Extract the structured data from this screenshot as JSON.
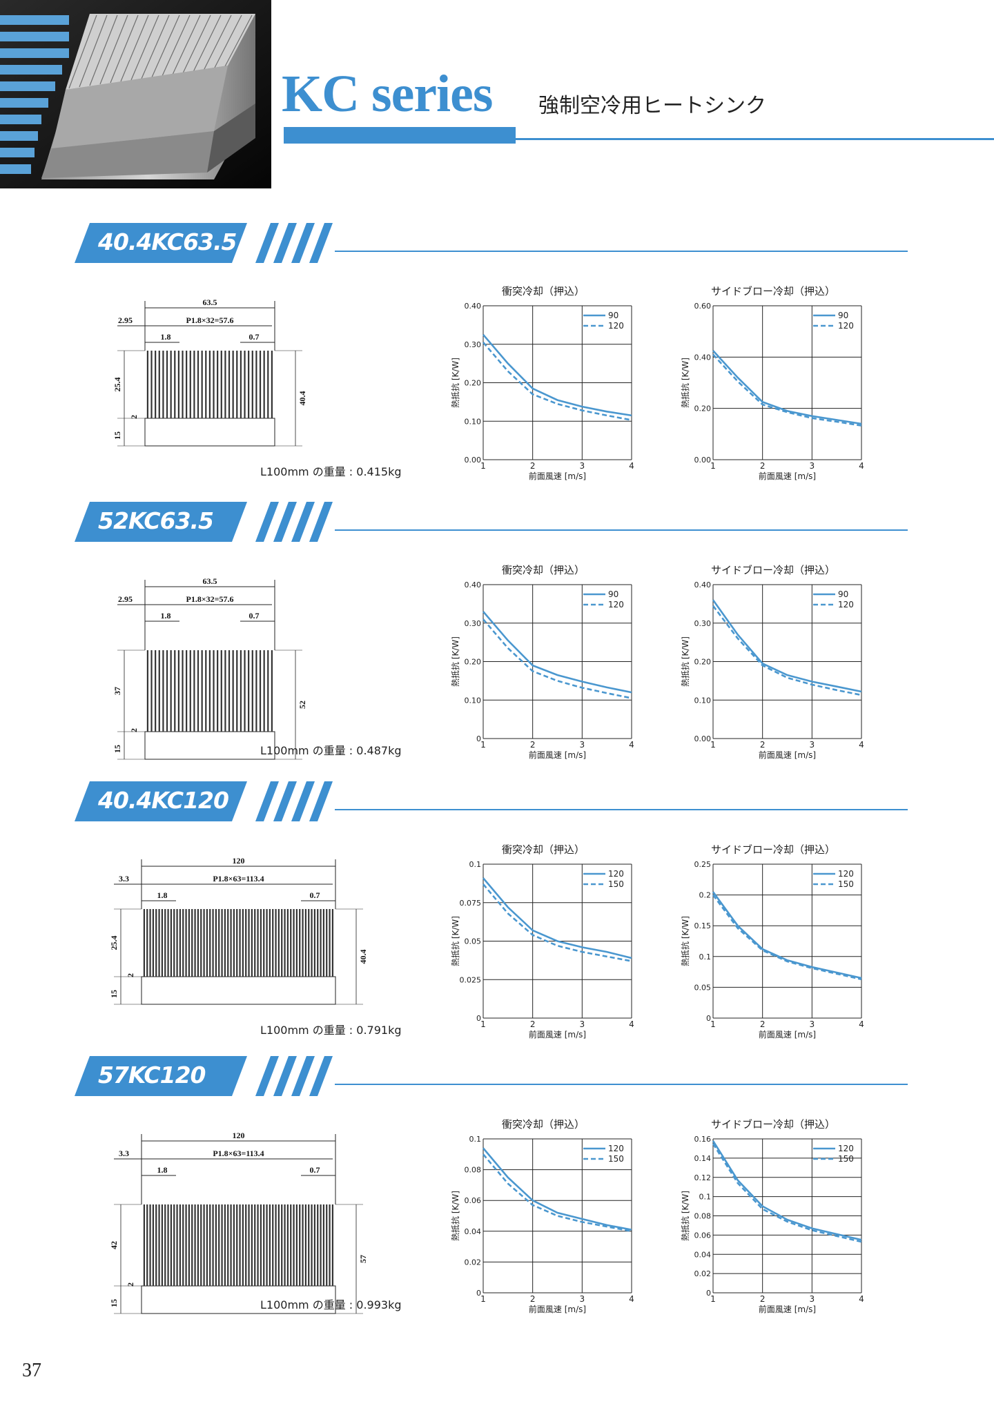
{
  "header": {
    "title": "KC series",
    "subtitle": "強制空冷用ヒートシンク",
    "accent_color": "#3d8fd0"
  },
  "page_number": "37",
  "products": [
    {
      "name": "40.4KC63.5",
      "weight_label": "L100mm の重量 : 0.415kg",
      "drawing": {
        "width": "63.5",
        "pitch": "P1.8×32=57.6",
        "edge": "2.95",
        "fin_base": "1.8",
        "fin_tip": "0.7",
        "fin_height": "25.4",
        "base": "15",
        "base_thk": "2",
        "total_height": "40.4"
      },
      "charts": [
        {
          "title": "衝突冷却（押込）",
          "ylabel": "熱抵抗 [K/W]",
          "xlabel": "前面風速 [m/s]",
          "x_ticks": [
            "1",
            "2",
            "3",
            "4"
          ],
          "y_ticks": [
            "0.00",
            "0.10",
            "0.20",
            "0.30",
            "0.40"
          ],
          "ylim": [
            0,
            0.4
          ],
          "legend": [
            "90",
            "120"
          ]
        },
        {
          "title": "サイドブロー冷却（押込）",
          "ylabel": "熱抵抗 [K/W]",
          "xlabel": "前面風速 [m/s]",
          "x_ticks": [
            "1",
            "2",
            "3",
            "4"
          ],
          "y_ticks": [
            "0.00",
            "0.20",
            "0.40",
            "0.60"
          ],
          "ylim": [
            0,
            0.6
          ],
          "legend": [
            "90",
            "120"
          ]
        }
      ]
    },
    {
      "name": "52KC63.5",
      "weight_label": "L100mm の重量 : 0.487kg",
      "drawing": {
        "width": "63.5",
        "pitch": "P1.8×32=57.6",
        "edge": "2.95",
        "fin_base": "1.8",
        "fin_tip": "0.7",
        "fin_height": "37",
        "base": "15",
        "base_thk": "2",
        "total_height": "52"
      },
      "charts": [
        {
          "title": "衝突冷却（押込）",
          "ylabel": "熱抵抗 [K/W]",
          "xlabel": "前面風速 [m/s]",
          "x_ticks": [
            "1",
            "2",
            "3",
            "4"
          ],
          "y_ticks": [
            "0",
            "0.10",
            "0.20",
            "0.30",
            "0.40"
          ],
          "ylim": [
            0,
            0.4
          ],
          "legend": [
            "90",
            "120"
          ]
        },
        {
          "title": "サイドブロー冷却（押込）",
          "ylabel": "熱抵抗 [K/W]",
          "xlabel": "前面風速 [m/s]",
          "x_ticks": [
            "1",
            "2",
            "3",
            "4"
          ],
          "y_ticks": [
            "0.00",
            "0.10",
            "0.20",
            "0.30",
            "0.40"
          ],
          "ylim": [
            0,
            0.4
          ],
          "legend": [
            "90",
            "120"
          ]
        }
      ]
    },
    {
      "name": "40.4KC120",
      "weight_label": "L100mm の重量 : 0.791kg",
      "drawing": {
        "width": "120",
        "pitch": "P1.8×63=113.4",
        "edge": "3.3",
        "fin_base": "1.8",
        "fin_tip": "0.7",
        "fin_height": "25.4",
        "base": "15",
        "base_thk": "2",
        "total_height": "40.4"
      },
      "charts": [
        {
          "title": "衝突冷却（押込）",
          "ylabel": "熱抵抗 [K/W]",
          "xlabel": "前面風速 [m/s]",
          "x_ticks": [
            "1",
            "2",
            "3",
            "4"
          ],
          "y_ticks": [
            "0",
            "0.025",
            "0.05",
            "0.075",
            "0.1"
          ],
          "ylim": [
            0,
            0.1
          ],
          "legend": [
            "120",
            "150"
          ]
        },
        {
          "title": "サイドブロー冷却（押込）",
          "ylabel": "熱抵抗 [K/W]",
          "xlabel": "前面風速 [m/s]",
          "x_ticks": [
            "1",
            "2",
            "3",
            "4"
          ],
          "y_ticks": [
            "0",
            "0.05",
            "0.1",
            "0.15",
            "0.2",
            "0.25"
          ],
          "ylim": [
            0,
            0.25
          ],
          "legend": [
            "120",
            "150"
          ]
        }
      ]
    },
    {
      "name": "57KC120",
      "weight_label": "L100mm の重量 : 0.993kg",
      "drawing": {
        "width": "120",
        "pitch": "P1.8×63=113.4",
        "edge": "3.3",
        "fin_base": "1.8",
        "fin_tip": "0.7",
        "fin_height": "42",
        "base": "15",
        "base_thk": "2",
        "total_height": "57"
      },
      "charts": [
        {
          "title": "衝突冷却（押込）",
          "ylabel": "熱抵抗 [K/W]",
          "xlabel": "前面風速 [m/s]",
          "x_ticks": [
            "1",
            "2",
            "3",
            "4"
          ],
          "y_ticks": [
            "0",
            "0.02",
            "0.04",
            "0.06",
            "0.08",
            "0.1"
          ],
          "ylim": [
            0,
            0.1
          ],
          "legend": [
            "120",
            "150"
          ]
        },
        {
          "title": "サイドブロー冷却（押込）",
          "ylabel": "熱抵抗 [K/W]",
          "xlabel": "前面風速 [m/s]",
          "x_ticks": [
            "1",
            "2",
            "3",
            "4"
          ],
          "y_ticks": [
            "0",
            "0.02",
            "0.04",
            "0.06",
            "0.08",
            "0.1",
            "0.12",
            "0.14",
            "0.16"
          ],
          "ylim": [
            0,
            0.16
          ],
          "legend": [
            "120",
            "150"
          ]
        }
      ]
    }
  ],
  "chart_data": [
    {
      "type": "line",
      "product": "40.4KC63.5",
      "title": "衝突冷却（押込）",
      "xlabel": "前面風速 [m/s]",
      "ylabel": "熱抵抗 [K/W]",
      "xlim": [
        1,
        4
      ],
      "ylim": [
        0,
        0.4
      ],
      "grid": true,
      "legend_position": "top-right",
      "x": [
        1,
        1.5,
        2,
        2.5,
        3,
        3.5,
        4
      ],
      "series": [
        {
          "name": "90",
          "style": "solid",
          "values": [
            0.325,
            0.25,
            0.185,
            0.155,
            0.138,
            0.125,
            0.115
          ]
        },
        {
          "name": "120",
          "style": "dashed",
          "values": [
            0.305,
            0.23,
            0.17,
            0.145,
            0.128,
            0.115,
            0.103
          ]
        }
      ]
    },
    {
      "type": "line",
      "product": "40.4KC63.5",
      "title": "サイドブロー冷却（押込）",
      "xlabel": "前面風速 [m/s]",
      "ylabel": "熱抵抗 [K/W]",
      "xlim": [
        1,
        4
      ],
      "ylim": [
        0,
        0.6
      ],
      "grid": true,
      "legend_position": "top-right",
      "x": [
        1,
        1.5,
        2,
        2.5,
        3,
        3.5,
        4
      ],
      "series": [
        {
          "name": "90",
          "style": "solid",
          "values": [
            0.425,
            0.32,
            0.225,
            0.19,
            0.17,
            0.155,
            0.14
          ]
        },
        {
          "name": "120",
          "style": "dashed",
          "values": [
            0.41,
            0.305,
            0.215,
            0.185,
            0.162,
            0.148,
            0.133
          ]
        }
      ]
    },
    {
      "type": "line",
      "product": "52KC63.5",
      "title": "衝突冷却（押込）",
      "xlabel": "前面風速 [m/s]",
      "ylabel": "熱抵抗 [K/W]",
      "xlim": [
        1,
        4
      ],
      "ylim": [
        0,
        0.4
      ],
      "grid": true,
      "legend_position": "top-right",
      "x": [
        1,
        1.5,
        2,
        2.5,
        3,
        3.5,
        4
      ],
      "series": [
        {
          "name": "90",
          "style": "solid",
          "values": [
            0.33,
            0.255,
            0.19,
            0.165,
            0.148,
            0.133,
            0.12
          ]
        },
        {
          "name": "120",
          "style": "dashed",
          "values": [
            0.31,
            0.235,
            0.175,
            0.15,
            0.132,
            0.118,
            0.105
          ]
        }
      ]
    },
    {
      "type": "line",
      "product": "52KC63.5",
      "title": "サイドブロー冷却（押込）",
      "xlabel": "前面風速 [m/s]",
      "ylabel": "熱抵抗 [K/W]",
      "xlim": [
        1,
        4
      ],
      "ylim": [
        0,
        0.4
      ],
      "grid": true,
      "legend_position": "top-right",
      "x": [
        1,
        1.5,
        2,
        2.5,
        3,
        3.5,
        4
      ],
      "series": [
        {
          "name": "90",
          "style": "solid",
          "values": [
            0.36,
            0.27,
            0.195,
            0.165,
            0.148,
            0.135,
            0.122
          ]
        },
        {
          "name": "120",
          "style": "dashed",
          "values": [
            0.345,
            0.26,
            0.19,
            0.158,
            0.14,
            0.126,
            0.113
          ]
        }
      ]
    },
    {
      "type": "line",
      "product": "40.4KC120",
      "title": "衝突冷却（押込）",
      "xlabel": "前面風速 [m/s]",
      "ylabel": "熱抵抗 [K/W]",
      "xlim": [
        1,
        4
      ],
      "ylim": [
        0,
        0.1
      ],
      "grid": true,
      "legend_position": "top-right",
      "x": [
        1,
        1.5,
        2,
        2.5,
        3,
        3.5,
        4
      ],
      "series": [
        {
          "name": "120",
          "style": "solid",
          "values": [
            0.091,
            0.072,
            0.057,
            0.05,
            0.046,
            0.043,
            0.039
          ]
        },
        {
          "name": "150",
          "style": "dashed",
          "values": [
            0.087,
            0.068,
            0.054,
            0.047,
            0.043,
            0.04,
            0.037
          ]
        }
      ]
    },
    {
      "type": "line",
      "product": "40.4KC120",
      "title": "サイドブロー冷却（押込）",
      "xlabel": "前面風速 [m/s]",
      "ylabel": "熱抵抗 [K/W]",
      "xlim": [
        1,
        4
      ],
      "ylim": [
        0,
        0.25
      ],
      "grid": true,
      "legend_position": "top-right",
      "x": [
        1,
        1.5,
        2,
        2.5,
        3,
        3.5,
        4
      ],
      "series": [
        {
          "name": "120",
          "style": "solid",
          "values": [
            0.205,
            0.15,
            0.112,
            0.094,
            0.083,
            0.074,
            0.065
          ]
        },
        {
          "name": "150",
          "style": "dashed",
          "values": [
            0.2,
            0.146,
            0.11,
            0.092,
            0.081,
            0.072,
            0.063
          ]
        }
      ]
    },
    {
      "type": "line",
      "product": "57KC120",
      "title": "衝突冷却（押込）",
      "xlabel": "前面風速 [m/s]",
      "ylabel": "熱抵抗 [K/W]",
      "xlim": [
        1,
        4
      ],
      "ylim": [
        0,
        0.1
      ],
      "grid": true,
      "legend_position": "top-right",
      "x": [
        1,
        1.5,
        2,
        2.5,
        3,
        3.5,
        4
      ],
      "series": [
        {
          "name": "120",
          "style": "solid",
          "values": [
            0.094,
            0.075,
            0.06,
            0.052,
            0.048,
            0.044,
            0.041
          ]
        },
        {
          "name": "150",
          "style": "dashed",
          "values": [
            0.09,
            0.071,
            0.057,
            0.05,
            0.046,
            0.043,
            0.04
          ]
        }
      ]
    },
    {
      "type": "line",
      "product": "57KC120",
      "title": "サイドブロー冷却（押込）",
      "xlabel": "前面風速 [m/s]",
      "ylabel": "熱抵抗 [K/W]",
      "xlim": [
        1,
        4
      ],
      "ylim": [
        0,
        0.16
      ],
      "grid": true,
      "legend_position": "top-right",
      "x": [
        1,
        1.5,
        2,
        2.5,
        3,
        3.5,
        4
      ],
      "series": [
        {
          "name": "120",
          "style": "solid",
          "values": [
            0.158,
            0.117,
            0.09,
            0.076,
            0.067,
            0.061,
            0.055
          ]
        },
        {
          "name": "150",
          "style": "dashed",
          "values": [
            0.155,
            0.114,
            0.087,
            0.074,
            0.065,
            0.059,
            0.053
          ]
        }
      ]
    }
  ]
}
